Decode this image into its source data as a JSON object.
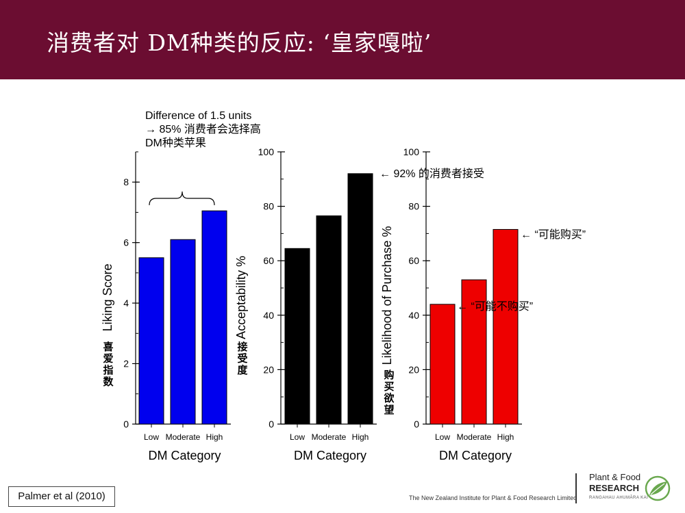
{
  "header": {
    "title": "消费者对 DM种类的反应: ‘皇家嘎啦’"
  },
  "notes": {
    "diff_text": "Difference of 1.5 units → 85% 消费者会选择高DM种类苹果",
    "accept_note": "← 92% 的消费者接受",
    "likely_buy": "←  “可能购买”",
    "likely_not_buy": "←  “可能不购买”"
  },
  "footer": {
    "citation": "Palmer et al (2010)",
    "institute": "The New Zealand Institute for Plant & Food Research Limited",
    "logo_line1": "Plant & Food",
    "logo_line2": "RESEARCH",
    "logo_line3": "RANGAHAU AHUMĀRA KAI"
  },
  "chart_data": [
    {
      "type": "bar",
      "categories": [
        "Low",
        "Moderate",
        "High"
      ],
      "values": [
        5.5,
        6.1,
        7.05
      ],
      "xlabel": "DM Category",
      "ylabel": "Liking Score",
      "ylabel_cn": "喜爱指数",
      "ylim": [
        0,
        9
      ],
      "yticks": [
        0,
        2,
        4,
        6,
        8
      ],
      "color": "#0000ee"
    },
    {
      "type": "bar",
      "categories": [
        "Low",
        "Moderate",
        "High"
      ],
      "values": [
        64.5,
        76.5,
        92
      ],
      "xlabel": "DM Category",
      "ylabel": "Acceptability %",
      "ylabel_cn": "接受度",
      "ylim": [
        0,
        100
      ],
      "yticks": [
        0,
        20,
        40,
        60,
        80,
        100
      ],
      "color": "#000000"
    },
    {
      "type": "bar",
      "categories": [
        "Low",
        "Moderate",
        "High"
      ],
      "values": [
        44,
        53,
        71.5
      ],
      "xlabel": "DM Category",
      "ylabel": "Likelihood of Purchase %",
      "ylabel_cn": "购买欲望",
      "ylim": [
        0,
        100
      ],
      "yticks": [
        0,
        20,
        40,
        60,
        80,
        100
      ],
      "color": "#ee0000"
    }
  ]
}
